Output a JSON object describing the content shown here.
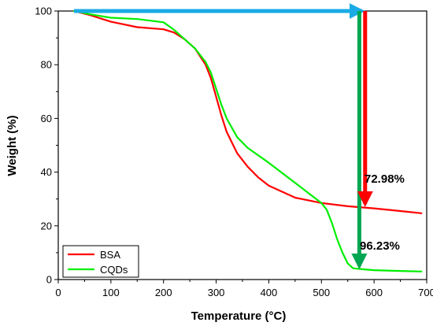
{
  "chart_data": {
    "type": "line",
    "title": "",
    "xlabel": "Temperature (°C)",
    "ylabel": "Weight (%)",
    "xlim": [
      0,
      700
    ],
    "ylim": [
      0,
      100
    ],
    "xticks": [
      "0",
      "100",
      "200",
      "300",
      "400",
      "500",
      "600",
      "700"
    ],
    "yticks": [
      "0",
      "20",
      "40",
      "60",
      "80",
      "100"
    ],
    "grid": false,
    "legend": "bottom-left",
    "series": [
      {
        "name": "BSA",
        "color": "#ff0000",
        "x": [
          30,
          60,
          100,
          150,
          200,
          220,
          240,
          260,
          280,
          290,
          300,
          310,
          320,
          330,
          340,
          360,
          380,
          400,
          450,
          500,
          550,
          600,
          650,
          690
        ],
        "y": [
          100,
          98.5,
          96,
          94,
          93.2,
          92,
          89.5,
          86,
          80,
          75,
          68,
          61,
          55,
          51,
          47,
          42,
          38,
          35,
          30.5,
          28.5,
          27.3,
          26.5,
          25.5,
          24.7
        ]
      },
      {
        "name": "CQDs",
        "color": "#00ee00",
        "x": [
          30,
          60,
          100,
          150,
          200,
          220,
          240,
          260,
          280,
          290,
          300,
          310,
          320,
          340,
          360,
          400,
          450,
          480,
          500,
          510,
          520,
          530,
          540,
          550,
          560,
          580,
          600,
          650,
          690
        ],
        "y": [
          100,
          98.8,
          97.5,
          97,
          95.8,
          93,
          89.5,
          86,
          81,
          77,
          71,
          65,
          60,
          53,
          49,
          43.5,
          36,
          31.5,
          28.5,
          26,
          21,
          15,
          10,
          6,
          4.2,
          3.8,
          3.5,
          3.2,
          3.0
        ]
      }
    ],
    "annotations": [
      {
        "text": "72.98%",
        "color": "#ff0000"
      },
      {
        "text": "96.23%",
        "color": "#00a651"
      }
    ],
    "arrows": {
      "horizontal_color": "#1aabe6",
      "bsa_arrow": {
        "x": 583,
        "y_from": 100,
        "y_to": 27
      },
      "cqd_arrow": {
        "x": 572,
        "y_from": 100,
        "y_to": 3.8
      },
      "horizontal": {
        "x_from": 30,
        "x_to": 583,
        "y": 100
      }
    }
  }
}
